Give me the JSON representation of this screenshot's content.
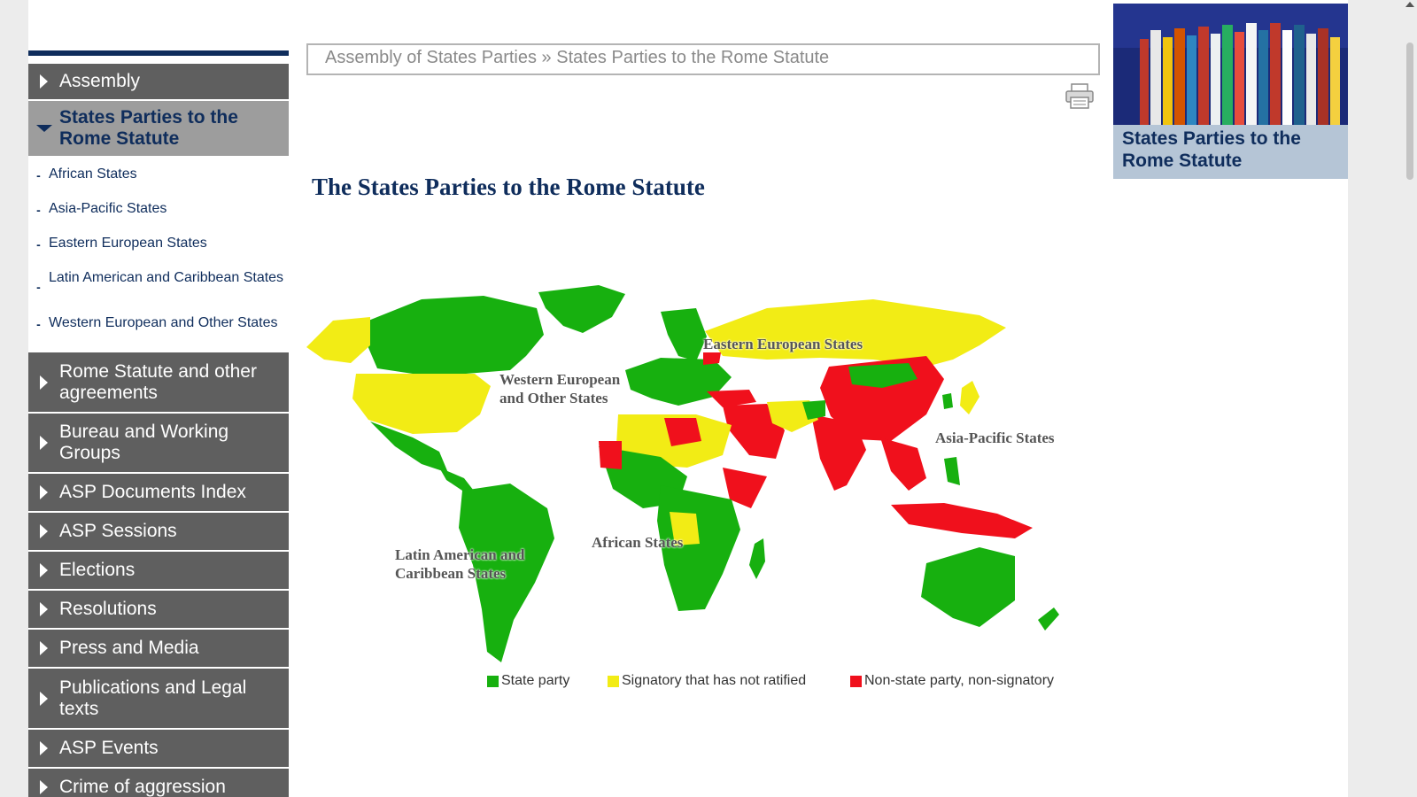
{
  "sidebar": {
    "top_item": {
      "label": "Assembly"
    },
    "active_item": {
      "label": "States Parties to the Rome Statute"
    },
    "sub_items": [
      {
        "label": "African States"
      },
      {
        "label": "Asia-Pacific States"
      },
      {
        "label": "Eastern European States"
      },
      {
        "label": "Latin American and Caribbean States"
      },
      {
        "label": "Western European and Other States"
      }
    ],
    "items": [
      {
        "label": "Rome Statute and other agreements"
      },
      {
        "label": "Bureau and Working Groups"
      },
      {
        "label": "ASP Documents Index"
      },
      {
        "label": "ASP Sessions"
      },
      {
        "label": "Elections"
      },
      {
        "label": "Resolutions"
      },
      {
        "label": "Press and Media"
      },
      {
        "label": "Publications and Legal texts"
      },
      {
        "label": "ASP Events"
      },
      {
        "label": "Crime of aggression"
      }
    ]
  },
  "breadcrumb": {
    "parent": "Assembly of States Parties",
    "separator": "»",
    "current": "States Parties to the Rome Statute"
  },
  "icons": {
    "print": "print-icon",
    "expand": "triangle-right-icon",
    "expanded": "triangle-down-icon"
  },
  "main": {
    "title": "The States Parties to the Rome Statute",
    "map": {
      "region_labels": {
        "eastern_europe": "Eastern European States",
        "western_europe": "Western European and Other States",
        "western_europe_lines": [
          "Western European",
          "and Other States"
        ],
        "asia_pacific": "Asia-Pacific States",
        "latin_america_lines": [
          "Latin American and",
          "Caribbean States"
        ],
        "africa": "African States"
      },
      "legend": [
        {
          "label": "State party",
          "color": "#17b00f"
        },
        {
          "label": "Signatory that has not ratified",
          "color": "#f2ec15"
        },
        {
          "label": "Non-state party, non-signatory",
          "color": "#f0101c"
        }
      ]
    }
  },
  "promo": {
    "title": "States Parties to the Rome Statute"
  },
  "colors": {
    "navy": "#0f2d5c",
    "nav_bg": "#5f5f5f",
    "nav_active_bg": "#9d9d9d",
    "promo_bg": "#b5c5d6"
  }
}
